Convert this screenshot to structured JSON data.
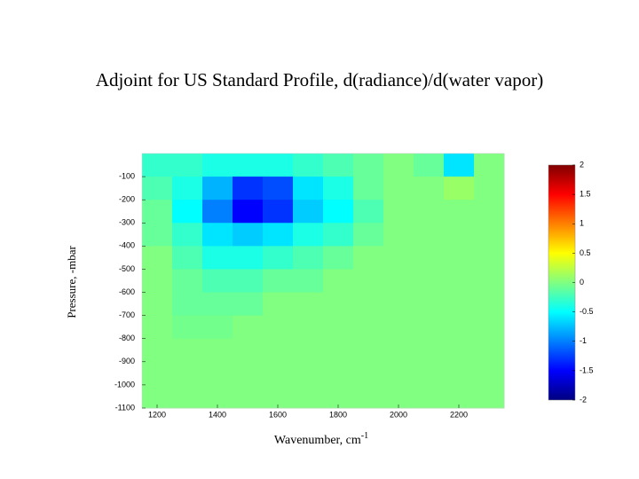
{
  "chart_data": {
    "type": "heatmap",
    "title": "Adjoint for US Standard Profile, d(radiance)/d(water vapor)",
    "xlabel": "Wavenumber, cm",
    "xlabel_superscript": "-1",
    "ylabel": "Pressure, -mbar",
    "xlim": [
      1150,
      2350
    ],
    "xticks": [
      1200,
      1400,
      1600,
      1800,
      2000,
      2200
    ],
    "ylim": [
      -1100,
      0
    ],
    "yticks": [
      -100,
      -200,
      -300,
      -400,
      -500,
      -600,
      -700,
      -800,
      -900,
      -1000,
      -1100
    ],
    "xbins": [
      1150,
      1250,
      1350,
      1450,
      1550,
      1650,
      1750,
      1850,
      1950,
      2050,
      2150,
      2250,
      2350
    ],
    "ybins": [
      0,
      -100,
      -200,
      -300,
      -400,
      -500,
      -600,
      -700,
      -800,
      -900,
      -1000,
      -1100
    ],
    "z": [
      [
        -0.3,
        -0.3,
        -0.4,
        -0.4,
        -0.4,
        -0.3,
        -0.2,
        -0.1,
        0,
        -0.1,
        -0.6,
        0
      ],
      [
        -0.2,
        -0.4,
        -0.8,
        -1.3,
        -1.2,
        -0.6,
        -0.4,
        -0.1,
        0,
        0,
        0.1,
        0
      ],
      [
        -0.1,
        -0.5,
        -1.0,
        -1.5,
        -1.3,
        -0.7,
        -0.5,
        -0.2,
        0,
        0,
        0,
        0
      ],
      [
        -0.1,
        -0.3,
        -0.6,
        -0.7,
        -0.6,
        -0.4,
        -0.3,
        -0.1,
        0,
        0,
        0,
        0
      ],
      [
        0,
        -0.2,
        -0.4,
        -0.4,
        -0.3,
        -0.2,
        -0.1,
        0,
        0,
        0,
        0,
        0
      ],
      [
        0,
        -0.1,
        -0.2,
        -0.2,
        -0.1,
        -0.1,
        0,
        0,
        0,
        0,
        0,
        0
      ],
      [
        0,
        -0.1,
        -0.1,
        -0.1,
        0,
        0,
        0,
        0,
        0,
        0,
        0,
        0
      ],
      [
        0,
        -0.05,
        -0.05,
        0,
        0,
        0,
        0,
        0,
        0,
        0,
        0,
        0
      ],
      [
        0,
        0,
        0,
        0,
        0,
        0,
        0,
        0,
        0,
        0,
        0,
        0
      ],
      [
        0,
        0,
        0,
        0,
        0,
        0,
        0,
        0,
        0,
        0,
        0,
        0
      ],
      [
        0,
        0,
        0,
        0,
        0,
        0,
        0,
        0,
        0,
        0,
        0,
        0
      ]
    ],
    "colormap": "jet",
    "clim": [
      -2,
      2
    ],
    "cticks": [
      2,
      1.5,
      1,
      0.5,
      0,
      -0.5,
      -1,
      -1.5,
      -2
    ]
  }
}
